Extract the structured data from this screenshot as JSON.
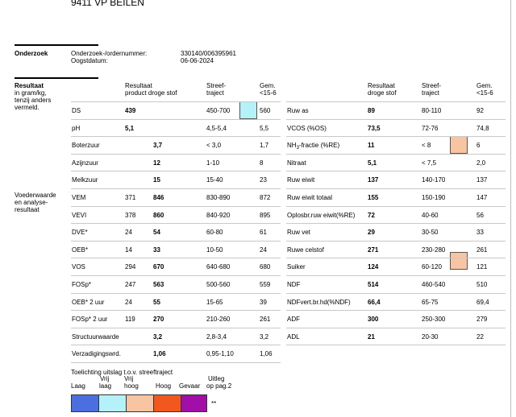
{
  "address": "9411 VP  BEILEN",
  "onderzoek": {
    "section": "Onderzoek",
    "order_label": "Onderzoek-/ordernummer:",
    "order_value": "330140/006395961",
    "date_label": "Oogstdatum:",
    "date_value": "06-06-2024"
  },
  "resultaat": {
    "section": "Resultaat",
    "unit_note": [
      "in gram/kg,",
      "tenzij anders",
      "vermeld."
    ],
    "voeder_note": [
      "Voederwaarde",
      "en analyse-",
      "resultaat"
    ]
  },
  "left_headers": {
    "result_1": "Resultaat",
    "result_2": "product droge stof",
    "streef_1": "Streef-",
    "streef_2": "traject",
    "gem_1": "Gem.",
    "gem_2": "<15-6"
  },
  "right_headers": {
    "result_1": "Resultaat",
    "result_2": "droge stof",
    "streef_1": "Streef-",
    "streef_2": "traject",
    "gem_1": "Gem.",
    "gem_2": "<15-6"
  },
  "left_rows": [
    {
      "name": "DS",
      "product": "439",
      "ds": "",
      "range": "450-700",
      "gem": "560"
    },
    {
      "name": "pH",
      "product": "5,1",
      "ds": "",
      "range": "4,5-5,4",
      "gem": "5,5"
    },
    {
      "name": "Boterzuur",
      "product": "",
      "ds": "3,7",
      "range": "< 3,0",
      "gem": "1,7"
    },
    {
      "name": "Azijnzuur",
      "product": "",
      "ds": "12",
      "range": "1-10",
      "gem": "8"
    },
    {
      "name": "Melkzuur",
      "product": "",
      "ds": "15",
      "range": "15-40",
      "gem": "23"
    },
    {
      "name": "VEM",
      "product": "371",
      "ds": "846",
      "range": "830-890",
      "gem": "872"
    },
    {
      "name": "VEVI",
      "product": "378",
      "ds": "860",
      "range": "840-920",
      "gem": "895"
    },
    {
      "name": "DVE*",
      "product": "24",
      "ds": "54",
      "range": "60-80",
      "gem": "61"
    },
    {
      "name": "OEB*",
      "product": "14",
      "ds": "33",
      "range": "10-50",
      "gem": "24"
    },
    {
      "name": "VOS",
      "product": "294",
      "ds": "670",
      "range": "640-680",
      "gem": "680"
    },
    {
      "name": "FOSp*",
      "product": "247",
      "ds": "563",
      "range": "500-560",
      "gem": "559"
    },
    {
      "name": "OEB* 2 uur",
      "product": "24",
      "ds": "55",
      "range": "15-65",
      "gem": "39"
    },
    {
      "name": "FOSp* 2 uur",
      "product": "119",
      "ds": "270",
      "range": "210-260",
      "gem": "261"
    },
    {
      "name": "Structuurwaarde",
      "product": "",
      "ds": "3,2",
      "range": "2,8-3,4",
      "gem": "3,2"
    },
    {
      "name": "Verzadigingswrd.",
      "product": "",
      "ds": "1,06",
      "range": "0,95-1,10",
      "gem": "1,06"
    }
  ],
  "right_rows": [
    {
      "name": "Ruw as",
      "ds": "89",
      "range": "80-110",
      "gem": "92"
    },
    {
      "name": "VCOS (%OS)",
      "ds": "73,5",
      "range": "72-76",
      "gem": "74,8"
    },
    {
      "name": "NH3-fractie (%RE)",
      "ds": "11",
      "range": "< 8",
      "gem": "6"
    },
    {
      "name": "Nitraat",
      "ds": "5,1",
      "range": "< 7,5",
      "gem": "2,0"
    },
    {
      "name": "Ruw eiwit",
      "ds": "137",
      "range": "140-170",
      "gem": "137"
    },
    {
      "name": "Ruw eiwit totaal",
      "ds": "155",
      "range": "150-190",
      "gem": "147"
    },
    {
      "name": "Oplosbr.ruw eiwit(%RE)",
      "ds": "72",
      "range": "40-60",
      "gem": "56"
    },
    {
      "name": "Ruw vet",
      "ds": "29",
      "range": "30-50",
      "gem": "33"
    },
    {
      "name": "Ruwe celstof",
      "ds": "271",
      "range": "230-280",
      "gem": "261"
    },
    {
      "name": "Suiker",
      "ds": "124",
      "range": "60-120",
      "gem": "121"
    },
    {
      "name": "NDF",
      "ds": "514",
      "range": "460-540",
      "gem": "510"
    },
    {
      "name": "NDFvert.br.hd(%NDF)",
      "ds": "66,4",
      "range": "65-75",
      "gem": "69,4"
    },
    {
      "name": "ADF",
      "ds": "300",
      "range": "250-300",
      "gem": "279"
    },
    {
      "name": "ADL",
      "ds": "21",
      "range": "20-30",
      "gem": "22"
    }
  ],
  "highlights": {
    "ds_color": "#b5f1f8",
    "nh3_color": "#f8c4a2",
    "suiker_color": "#f8c4a2"
  },
  "legend": {
    "title": "Toelichting uitslag t.o.v. streeftraject",
    "laag": "Laag",
    "vrij_laag_1": "Vrij",
    "vrij_laag_2": "laag",
    "vrij_hoog_1": "Vrij",
    "vrij_hoog_2": "hoog",
    "hoog": "Hoog",
    "gevaar": "Gevaar",
    "uitleg_1": "Uitleg",
    "uitleg_2": "op pag.2",
    "note": "**",
    "colors": {
      "laag": "#4b6fe0",
      "vrij_laag": "#b5f1f8",
      "vrij_hoog": "#f8c4a2",
      "hoog": "#f2571e",
      "gevaar": "#a10fa8"
    }
  }
}
